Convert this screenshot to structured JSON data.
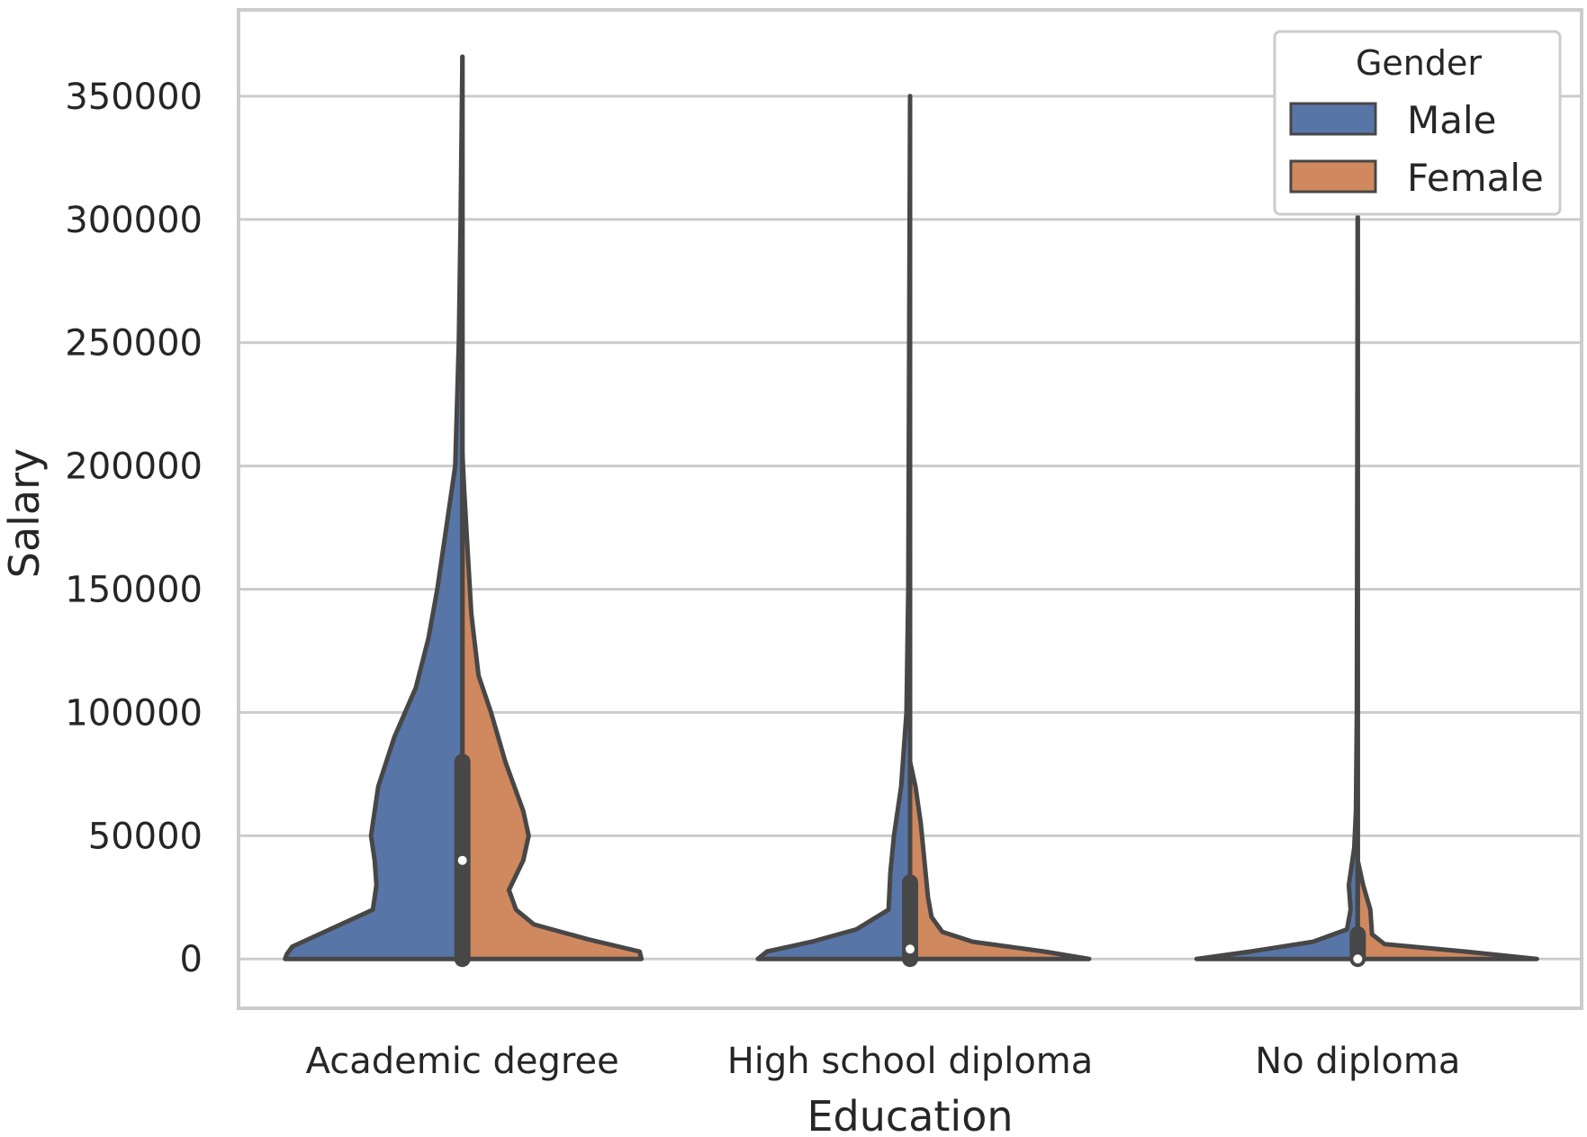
{
  "chart_data": {
    "type": "violin",
    "split": true,
    "xlabel": "Education",
    "ylabel": "Salary",
    "ylim": [
      -20000,
      385000
    ],
    "yticks": [
      0,
      50000,
      100000,
      150000,
      200000,
      250000,
      300000,
      350000
    ],
    "ytick_labels": [
      "0",
      "50000",
      "100000",
      "150000",
      "200000",
      "250000",
      "300000",
      "350000"
    ],
    "grid": true,
    "categories": [
      "Academic degree",
      "High school diploma",
      "No diploma"
    ],
    "legend": {
      "title": "Gender",
      "placement": "top-right",
      "entries": [
        "Male",
        "Female"
      ]
    },
    "colors": {
      "Male": "#5875a7",
      "Female": "#d0885f",
      "outline": "#474747",
      "grid": "#cccccc",
      "frame": "#cccccc"
    },
    "series": [
      {
        "name": "Male",
        "violins": [
          {
            "category": "Academic degree",
            "profile": [
              [
                0,
                0.99
              ],
              [
                2000,
                0.98
              ],
              [
                5000,
                0.95
              ],
              [
                10000,
                0.8
              ],
              [
                20000,
                0.5
              ],
              [
                30000,
                0.48
              ],
              [
                40000,
                0.49
              ],
              [
                50000,
                0.51
              ],
              [
                70000,
                0.47
              ],
              [
                90000,
                0.38
              ],
              [
                110000,
                0.26
              ],
              [
                130000,
                0.19
              ],
              [
                150000,
                0.14
              ],
              [
                175000,
                0.09
              ],
              [
                200000,
                0.04
              ],
              [
                250000,
                0.02
              ],
              [
                300000,
                0.01
              ],
              [
                366000,
                0.0
              ]
            ]
          },
          {
            "category": "High school diploma",
            "profile": [
              [
                0,
                0.85
              ],
              [
                3000,
                0.8
              ],
              [
                7000,
                0.55
              ],
              [
                12000,
                0.3
              ],
              [
                20000,
                0.12
              ],
              [
                35000,
                0.11
              ],
              [
                50000,
                0.09
              ],
              [
                70000,
                0.05
              ],
              [
                100000,
                0.02
              ],
              [
                150000,
                0.01
              ],
              [
                350000,
                0.0
              ]
            ]
          },
          {
            "category": "No diploma",
            "profile": [
              [
                0,
                0.9
              ],
              [
                3000,
                0.6
              ],
              [
                7000,
                0.25
              ],
              [
                12000,
                0.06
              ],
              [
                20000,
                0.04
              ],
              [
                30000,
                0.05
              ],
              [
                45000,
                0.02
              ],
              [
                60000,
                0.01
              ],
              [
                100000,
                0.005
              ],
              [
                300000,
                0.0
              ]
            ]
          }
        ]
      },
      {
        "name": "Female",
        "violins": [
          {
            "category": "Academic degree",
            "profile": [
              [
                0,
                1.0
              ],
              [
                3000,
                0.99
              ],
              [
                8000,
                0.7
              ],
              [
                14000,
                0.4
              ],
              [
                20000,
                0.3
              ],
              [
                28000,
                0.26
              ],
              [
                40000,
                0.34
              ],
              [
                50000,
                0.37
              ],
              [
                60000,
                0.34
              ],
              [
                80000,
                0.24
              ],
              [
                100000,
                0.16
              ],
              [
                115000,
                0.09
              ],
              [
                140000,
                0.05
              ],
              [
                165000,
                0.03
              ],
              [
                190000,
                0.01
              ],
              [
                205000,
                0.0
              ]
            ]
          },
          {
            "category": "High school diploma",
            "profile": [
              [
                0,
                1.0
              ],
              [
                3000,
                0.75
              ],
              [
                7000,
                0.35
              ],
              [
                11000,
                0.18
              ],
              [
                17000,
                0.12
              ],
              [
                25000,
                0.1
              ],
              [
                40000,
                0.08
              ],
              [
                55000,
                0.06
              ],
              [
                70000,
                0.03
              ],
              [
                80000,
                0.0
              ]
            ]
          },
          {
            "category": "No diploma",
            "profile": [
              [
                0,
                1.0
              ],
              [
                3000,
                0.6
              ],
              [
                6000,
                0.15
              ],
              [
                10000,
                0.08
              ],
              [
                20000,
                0.07
              ],
              [
                30000,
                0.03
              ],
              [
                40000,
                0.0
              ]
            ]
          }
        ]
      }
    ],
    "box": [
      {
        "category": "Academic degree",
        "whisker_low": 0,
        "q1": 0,
        "median": 40000,
        "q3": 80000,
        "whisker_high": 366000
      },
      {
        "category": "High school diploma",
        "whisker_low": 0,
        "q1": 0,
        "median": 4000,
        "q3": 31000,
        "whisker_high": 350000
      },
      {
        "category": "No diploma",
        "whisker_low": 0,
        "q1": 0,
        "median": 0,
        "q3": 10000,
        "whisker_high": 350000
      }
    ]
  }
}
